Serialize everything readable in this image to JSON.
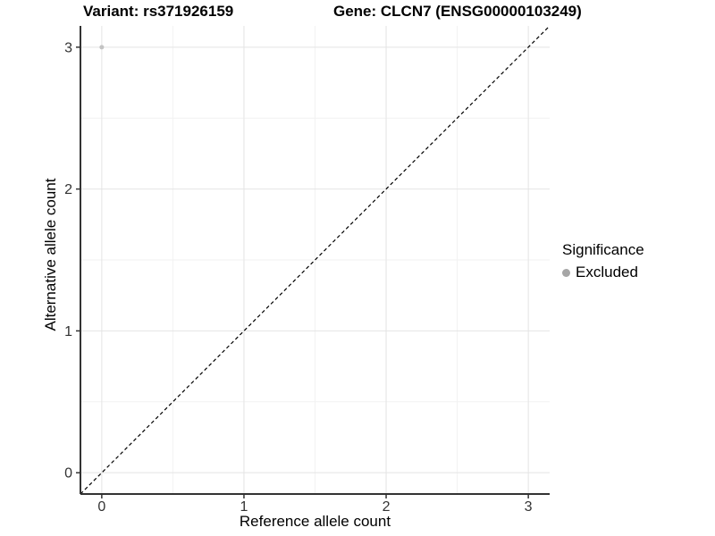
{
  "chart_data": {
    "type": "scatter",
    "title_left": "Variant: rs371926159",
    "title_right": "Gene: CLCN7 (ENSG00000103249)",
    "xlabel": "Reference allele count",
    "ylabel": "Alternative allele count",
    "xlim": [
      -0.15,
      3.15
    ],
    "ylim": [
      -0.15,
      3.15
    ],
    "x_ticks": [
      0,
      1,
      2,
      3
    ],
    "y_ticks": [
      0,
      1,
      2,
      3
    ],
    "minor_ticks": [
      0.5,
      1.5,
      2.5
    ],
    "grid": true,
    "points": [
      {
        "x": 0,
        "y": 3,
        "series": "Excluded"
      }
    ],
    "reference_line": {
      "type": "identity",
      "style": "dashed",
      "from": [
        -0.15,
        -0.15
      ],
      "to": [
        3.15,
        3.15
      ]
    },
    "legend": {
      "title": "Significance",
      "position": "right",
      "entries": [
        {
          "label": "Excluded",
          "color": "#a6a6a6"
        }
      ]
    },
    "colors": {
      "point": "#c3c3c3",
      "legend_dot": "#a6a6a6",
      "grid_major": "#e4e4e4",
      "grid_minor": "#f2f2f2",
      "axis": "#333333",
      "tick_text": "#333333",
      "dashed_line": "#000000"
    }
  }
}
